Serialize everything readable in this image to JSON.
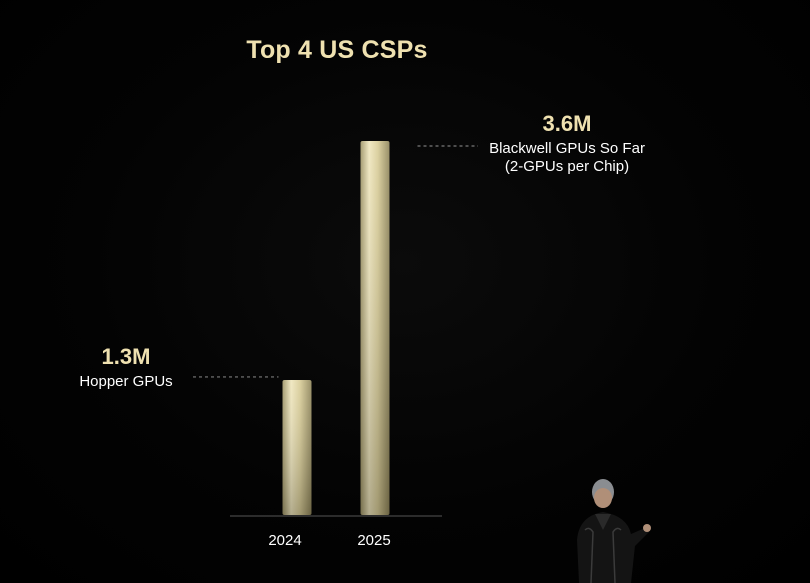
{
  "title": "Top 4 US CSPs",
  "chart_data": {
    "type": "bar",
    "title": "Top 4 US CSPs",
    "categories": [
      "2024",
      "2025"
    ],
    "values": [
      1.3,
      3.6
    ],
    "unit": "M",
    "value_labels": [
      "1.3M",
      "3.6M"
    ],
    "annotations": [
      {
        "category": "2024",
        "value_label": "1.3M",
        "lines": [
          "Hopper GPUs"
        ]
      },
      {
        "category": "2025",
        "value_label": "3.6M",
        "lines": [
          "Blackwell GPUs So Far",
          "(2-GPUs per Chip)"
        ]
      }
    ],
    "xlabel": "",
    "ylabel": "",
    "ylim": [
      0,
      3.6
    ],
    "grid": false,
    "colors": {
      "bar": "#d8cc97",
      "accent": "#efe1b0",
      "background": "#000000"
    }
  }
}
